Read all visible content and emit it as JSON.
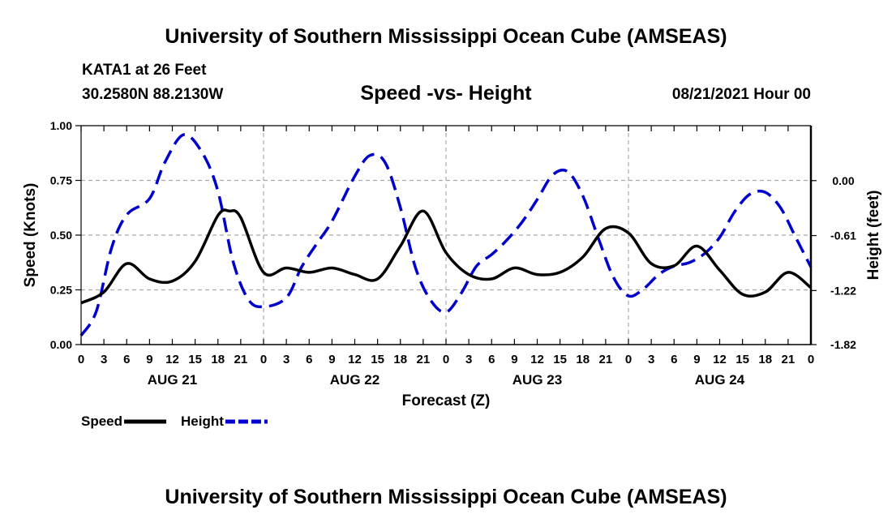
{
  "header": {
    "title": "University of Southern Mississippi Ocean Cube (AMSEAS)",
    "station": "KATA1 at 26 Feet",
    "coords": "30.2580N  88.2130W",
    "subtitle": "Speed -vs- Height",
    "datetime": "08/21/2021 Hour 00"
  },
  "footer": {
    "title": "University of Southern Mississippi Ocean Cube (AMSEAS)"
  },
  "chart_data": {
    "type": "line",
    "xlabel": "Forecast (Z)",
    "ylabel": "Speed (Knots)",
    "y2label": "Height (feet)",
    "xlim": [
      0,
      96
    ],
    "ylim": [
      0,
      1.0
    ],
    "y2lim": [
      -1.82,
      0.61
    ],
    "x_ticks": [
      0,
      3,
      6,
      9,
      12,
      15,
      18,
      21,
      24,
      27,
      30,
      33,
      36,
      39,
      42,
      45,
      48,
      51,
      54,
      57,
      60,
      63,
      66,
      69,
      72,
      75,
      78,
      81,
      84,
      87,
      90,
      93,
      96
    ],
    "x_tick_labels": [
      "0",
      "3",
      "6",
      "9",
      "12",
      "15",
      "18",
      "21",
      "0",
      "3",
      "6",
      "9",
      "12",
      "15",
      "18",
      "21",
      "0",
      "3",
      "6",
      "9",
      "12",
      "15",
      "18",
      "21",
      "0",
      "3",
      "6",
      "9",
      "12",
      "15",
      "18",
      "21",
      "0"
    ],
    "date_labels": [
      {
        "x": 12,
        "label": "AUG 21"
      },
      {
        "x": 36,
        "label": "AUG 22"
      },
      {
        "x": 60,
        "label": "AUG 23"
      },
      {
        "x": 84,
        "label": "AUG 24"
      }
    ],
    "y_ticks": [
      0,
      0.25,
      0.5,
      0.75,
      1.0
    ],
    "y_tick_labels": [
      "0.00",
      "0.25",
      "0.50",
      "0.75",
      "1.00"
    ],
    "y2_ticks": [
      -1.82,
      -1.22,
      -0.61,
      0.0
    ],
    "y2_tick_labels": [
      "-1.82",
      "-1.22",
      "-0.61",
      "0.00"
    ],
    "grid": true,
    "legend": [
      {
        "name": "Speed",
        "color": "#000000",
        "dash": "solid"
      },
      {
        "name": "Height",
        "color": "#0000cc",
        "dash": "dashed"
      }
    ],
    "series": [
      {
        "name": "Speed",
        "axis": "left",
        "color": "#000000",
        "x": [
          0,
          3,
          6,
          9,
          12,
          15,
          18,
          19.5,
          21,
          24,
          27,
          30,
          33,
          36,
          39,
          42,
          45,
          48,
          51,
          54,
          57,
          60,
          63,
          66,
          69,
          72,
          75,
          78,
          81,
          84,
          87,
          90,
          93,
          96
        ],
        "y": [
          0.19,
          0.24,
          0.37,
          0.3,
          0.29,
          0.38,
          0.59,
          0.61,
          0.58,
          0.33,
          0.35,
          0.33,
          0.35,
          0.32,
          0.3,
          0.45,
          0.61,
          0.42,
          0.32,
          0.3,
          0.35,
          0.32,
          0.33,
          0.4,
          0.53,
          0.51,
          0.37,
          0.36,
          0.45,
          0.34,
          0.23,
          0.24,
          0.33,
          0.26
        ]
      },
      {
        "name": "Height",
        "axis": "right",
        "color": "#0000cc",
        "x": [
          0,
          2,
          4,
          6,
          9,
          11,
          13.5,
          16,
          18,
          20,
          22,
          24,
          27,
          29,
          31,
          33,
          36,
          38,
          40,
          42,
          44,
          46,
          48,
          50,
          52,
          54,
          56,
          58,
          60,
          62,
          64,
          66,
          68,
          70,
          72,
          74,
          76,
          78,
          80,
          82,
          84,
          86,
          88,
          90,
          92,
          94,
          96
        ],
        "y": [
          -1.72,
          -1.45,
          -0.75,
          -0.38,
          -0.2,
          0.2,
          0.51,
          0.3,
          -0.12,
          -0.9,
          -1.32,
          -1.4,
          -1.3,
          -0.96,
          -0.7,
          -0.45,
          0.05,
          0.28,
          0.2,
          -0.3,
          -0.97,
          -1.33,
          -1.46,
          -1.25,
          -0.95,
          -0.82,
          -0.66,
          -0.46,
          -0.21,
          0.06,
          0.1,
          -0.17,
          -0.63,
          -1.07,
          -1.28,
          -1.2,
          -1.04,
          -0.95,
          -0.91,
          -0.81,
          -0.63,
          -0.34,
          -0.15,
          -0.13,
          -0.3,
          -0.63,
          -0.96
        ]
      }
    ]
  }
}
